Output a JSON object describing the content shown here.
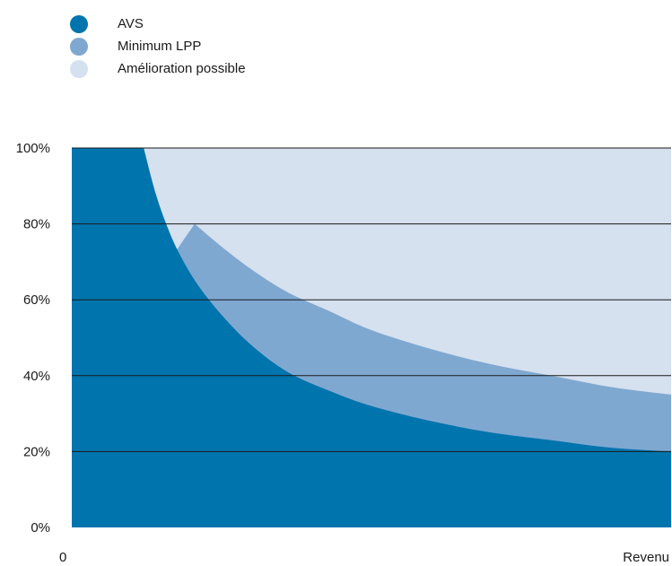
{
  "colors": {
    "avs": "#0074ad",
    "lpp": "#7fa8d1",
    "improvement": "#d5e1ef",
    "grid": "#1a1a1a"
  },
  "chart_data": {
    "type": "area",
    "title": "",
    "xlabel": "Revenu",
    "ylabel": "",
    "x_tick_labels": [
      "0",
      "Revenu"
    ],
    "ylim": [
      0,
      100
    ],
    "y_ticks": [
      0,
      20,
      40,
      60,
      80,
      100
    ],
    "y_tick_labels": [
      "0%",
      "20%",
      "40%",
      "60%",
      "80%",
      "100%"
    ],
    "grid": true,
    "legend_position": "top-left",
    "series": [
      {
        "name": "AVS",
        "color_key": "avs",
        "x": [
          0,
          0.12,
          0.14,
          0.16,
          0.18,
          0.21,
          0.25,
          0.3,
          0.36,
          0.43,
          0.5,
          0.6,
          0.7,
          0.8,
          0.9,
          1.0
        ],
        "values": [
          100,
          100,
          88,
          79,
          72,
          64,
          56,
          48,
          41,
          36,
          32,
          28,
          25,
          23,
          21,
          20
        ]
      },
      {
        "name": "Minimum LPP",
        "color_key": "lpp",
        "x": [
          0.17,
          0.205,
          0.25,
          0.3,
          0.36,
          0.43,
          0.5,
          0.6,
          0.7,
          0.8,
          0.9,
          1.0
        ],
        "values": [
          72,
          80,
          74,
          68,
          62,
          57,
          52,
          47,
          43,
          40,
          37,
          35
        ]
      },
      {
        "name": "Amélioration possible",
        "color_key": "improvement",
        "x": [
          0.12,
          1.0
        ],
        "values": [
          100,
          100
        ]
      }
    ]
  }
}
